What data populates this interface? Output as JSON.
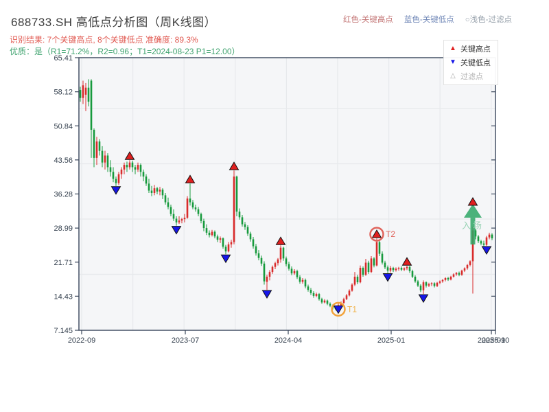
{
  "header": {
    "title": "688733.SH 高低点分析图（周K线图）",
    "result_line": "识别结果: 7个关键高点, 8个关键低点  准确度: 89.3%",
    "result_color": "#e15a52",
    "quality_line": "优质：是（R1=71.2%，R2=0.96；T1=2024-08-23 P1=12.00）",
    "quality_color": "#41a470",
    "legend_top": [
      {
        "label": "红色-关键高点",
        "color": "#c47878"
      },
      {
        "label": "蓝色-关键低点",
        "color": "#7289b8"
      },
      {
        "label": "○浅色-过滤点",
        "color": "#98a2ac"
      }
    ]
  },
  "legend_box": {
    "items": [
      {
        "label": "关键高点",
        "icon": "triangle-up-red",
        "icon_glyph": "▲",
        "icon_color": "#e01f1f",
        "text_color": "#333333"
      },
      {
        "label": "关键低点",
        "icon": "triangle-down-blue",
        "icon_glyph": "▼",
        "icon_color": "#1616e8",
        "text_color": "#333333"
      },
      {
        "label": "过滤点",
        "icon": "triangle-up-open",
        "icon_glyph": "△",
        "icon_color": "#aaaaaa",
        "text_color": "#b3b3b3"
      }
    ]
  },
  "chart_data": {
    "type": "candlestick",
    "title": "688733.SH weekly K-line with key high/low detection",
    "up_color": "#d92b2b",
    "down_color": "#179a3d",
    "high_marker_color": "#e01f1f",
    "low_marker_color": "#1616e8",
    "marker_edge_color": "#111111",
    "y_ticks": [
      {
        "label": "65.41",
        "value": 65.41
      },
      {
        "label": "58.12",
        "value": 58.12
      },
      {
        "label": "50.84",
        "value": 50.84
      },
      {
        "label": "43.56",
        "value": 43.56
      },
      {
        "label": "36.28",
        "value": 36.28
      },
      {
        "label": "28.99",
        "value": 28.99
      },
      {
        "label": "21.71",
        "value": 21.71
      },
      {
        "label": "14.43",
        "value": 14.43
      },
      {
        "label": "7.145",
        "value": 7.145
      }
    ],
    "x_ticks": [
      {
        "label": "2022-09",
        "pos": 0.5
      },
      {
        "label": "2023-07",
        "pos": 38.25
      },
      {
        "label": "2024-04",
        "pos": 75.75
      },
      {
        "label": "2025-01",
        "pos": 113.25
      },
      {
        "label": "2025-09",
        "pos": 149.75
      },
      {
        "label": "2025-10",
        "pos": 151.25
      }
    ],
    "candles": [
      [
        58.5,
        59.2,
        56.0,
        56.8
      ],
      [
        56.8,
        60.5,
        55.5,
        59.5
      ],
      [
        57.5,
        60.0,
        54.0,
        59.0
      ],
      [
        59.0,
        60.8,
        55.0,
        56.0
      ],
      [
        60.5,
        60.8,
        44.0,
        50.0
      ],
      [
        50.0,
        50.3,
        42.0,
        44.0
      ],
      [
        44.0,
        48.5,
        42.5,
        47.5
      ],
      [
        47.5,
        48.0,
        44.5,
        45.5
      ],
      [
        45.5,
        46.5,
        42.0,
        43.0
      ],
      [
        43.0,
        45.5,
        41.5,
        44.5
      ],
      [
        44.5,
        45.0,
        41.0,
        42.0
      ],
      [
        42.0,
        43.5,
        40.0,
        41.0
      ],
      [
        41.0,
        42.0,
        38.8,
        39.5
      ],
      [
        39.5,
        40.0,
        38.0,
        38.6
      ],
      [
        38.6,
        41.0,
        38.2,
        40.5
      ],
      [
        40.5,
        42.0,
        39.5,
        41.5
      ],
      [
        41.5,
        43.0,
        40.5,
        42.5
      ],
      [
        42.5,
        43.2,
        41.0,
        42.0
      ],
      [
        42.0,
        43.5,
        41.5,
        43.0
      ],
      [
        43.0,
        43.4,
        41.0,
        42.0
      ],
      [
        42.0,
        42.5,
        40.5,
        41.5
      ],
      [
        41.5,
        43.0,
        41.0,
        42.5
      ],
      [
        42.5,
        42.8,
        40.0,
        41.0
      ],
      [
        41.0,
        41.5,
        39.0,
        40.0
      ],
      [
        40.0,
        40.5,
        38.0,
        38.5
      ],
      [
        38.5,
        39.5,
        36.5,
        37.0
      ],
      [
        37.0,
        38.0,
        35.8,
        36.5
      ],
      [
        36.5,
        38.2,
        36.0,
        37.5
      ],
      [
        37.5,
        37.8,
        36.2,
        36.8
      ],
      [
        36.8,
        37.8,
        36.0,
        37.2
      ],
      [
        37.2,
        37.5,
        35.2,
        36.0
      ],
      [
        36.0,
        36.5,
        34.0,
        34.5
      ],
      [
        34.5,
        35.5,
        33.0,
        33.5
      ],
      [
        33.5,
        34.0,
        31.5,
        32.0
      ],
      [
        32.0,
        33.0,
        30.5,
        31.0
      ],
      [
        31.0,
        31.5,
        29.5,
        30.2
      ],
      [
        30.2,
        31.5,
        29.9,
        30.6
      ],
      [
        30.6,
        31.2,
        30.0,
        30.9
      ],
      [
        30.9,
        32.0,
        30.2,
        31.2
      ],
      [
        31.2,
        35.8,
        31.0,
        35.3
      ],
      [
        35.3,
        38.5,
        33.8,
        34.5
      ],
      [
        34.5,
        35.0,
        33.0,
        33.4
      ],
      [
        33.4,
        34.0,
        32.5,
        33.0
      ],
      [
        33.0,
        33.5,
        31.5,
        32.0
      ],
      [
        32.0,
        32.3,
        30.0,
        30.5
      ],
      [
        30.5,
        31.0,
        28.3,
        29.0
      ],
      [
        29.0,
        29.8,
        27.5,
        28.0
      ],
      [
        28.0,
        28.5,
        27.0,
        27.5
      ],
      [
        27.5,
        28.6,
        27.2,
        28.2
      ],
      [
        28.2,
        28.5,
        26.8,
        27.2
      ],
      [
        27.2,
        27.6,
        26.0,
        26.5
      ],
      [
        26.5,
        27.2,
        25.8,
        26.8
      ],
      [
        26.8,
        27.0,
        24.6,
        25.0
      ],
      [
        25.0,
        25.4,
        23.4,
        24.0
      ],
      [
        24.0,
        26.0,
        23.8,
        25.5
      ],
      [
        25.5,
        26.5,
        24.8,
        26.0
      ],
      [
        26.0,
        41.3,
        25.5,
        40.0
      ],
      [
        40.0,
        40.2,
        31.5,
        32.5
      ],
      [
        32.5,
        33.2,
        30.8,
        31.3
      ],
      [
        31.3,
        31.8,
        29.3,
        29.8
      ],
      [
        29.8,
        30.3,
        28.6,
        29.2
      ],
      [
        29.2,
        29.6,
        27.3,
        27.8
      ],
      [
        27.8,
        28.2,
        26.1,
        26.6
      ],
      [
        26.6,
        27.1,
        24.6,
        25.1
      ],
      [
        25.1,
        25.6,
        23.1,
        23.6
      ],
      [
        23.6,
        24.3,
        22.1,
        22.6
      ],
      [
        22.6,
        23.1,
        20.9,
        21.4
      ],
      [
        21.4,
        21.9,
        16.9,
        17.6
      ],
      [
        17.5,
        19.0,
        15.8,
        18.6
      ],
      [
        18.6,
        20.0,
        17.8,
        19.6
      ],
      [
        19.6,
        21.0,
        19.2,
        20.7
      ],
      [
        20.7,
        21.8,
        20.2,
        21.5
      ],
      [
        21.5,
        22.6,
        21.0,
        22.3
      ],
      [
        22.3,
        25.3,
        21.6,
        24.8
      ],
      [
        24.8,
        25.0,
        22.0,
        22.5
      ],
      [
        22.5,
        22.9,
        20.8,
        21.3
      ],
      [
        21.3,
        21.8,
        19.9,
        20.3
      ],
      [
        20.3,
        20.8,
        18.9,
        19.3
      ],
      [
        19.3,
        20.2,
        19.0,
        19.8
      ],
      [
        19.8,
        20.1,
        18.1,
        18.5
      ],
      [
        18.5,
        18.9,
        17.1,
        17.5
      ],
      [
        17.5,
        18.3,
        17.1,
        17.9
      ],
      [
        17.9,
        18.2,
        16.1,
        16.5
      ],
      [
        16.5,
        16.9,
        15.4,
        15.8
      ],
      [
        15.8,
        16.2,
        14.7,
        15.1
      ],
      [
        15.1,
        15.5,
        14.1,
        14.5
      ],
      [
        14.5,
        15.2,
        14.2,
        14.9
      ],
      [
        14.9,
        15.1,
        13.5,
        13.8
      ],
      [
        13.8,
        14.1,
        12.8,
        13.1
      ],
      [
        13.1,
        13.8,
        12.9,
        13.5
      ],
      [
        13.5,
        13.7,
        12.5,
        12.8
      ],
      [
        12.8,
        13.1,
        12.1,
        12.4
      ],
      [
        12.4,
        12.7,
        11.6,
        12.0
      ],
      [
        12.0,
        12.3,
        11.4,
        11.7
      ],
      [
        11.7,
        12.9,
        11.5,
        12.5
      ],
      [
        12.5,
        13.3,
        12.2,
        13.0
      ],
      [
        13.0,
        14.1,
        12.8,
        13.8
      ],
      [
        13.8,
        14.9,
        13.6,
        14.6
      ],
      [
        14.6,
        15.9,
        14.4,
        15.6
      ],
      [
        15.6,
        17.2,
        15.4,
        16.9
      ],
      [
        16.9,
        19.6,
        16.6,
        18.6
      ],
      [
        18.6,
        19.0,
        17.0,
        17.4
      ],
      [
        17.4,
        21.0,
        17.2,
        20.5
      ],
      [
        20.5,
        20.8,
        18.6,
        19.0
      ],
      [
        19.0,
        22.4,
        18.8,
        21.6
      ],
      [
        21.6,
        22.0,
        19.2,
        19.6
      ],
      [
        19.6,
        23.0,
        19.4,
        22.5
      ],
      [
        22.5,
        22.8,
        20.6,
        21.0
      ],
      [
        21.0,
        26.8,
        20.8,
        26.0
      ],
      [
        26.0,
        26.3,
        23.0,
        23.5
      ],
      [
        23.5,
        24.0,
        21.2,
        21.6
      ],
      [
        21.6,
        22.0,
        20.2,
        20.6
      ],
      [
        20.6,
        21.0,
        19.4,
        19.9
      ],
      [
        19.9,
        20.9,
        19.5,
        20.5
      ],
      [
        20.5,
        20.7,
        19.6,
        20.0
      ],
      [
        20.0,
        20.6,
        19.7,
        20.3
      ],
      [
        20.3,
        20.7,
        19.9,
        20.5
      ],
      [
        20.5,
        20.8,
        19.8,
        20.1
      ],
      [
        20.1,
        20.6,
        19.8,
        20.4
      ],
      [
        20.4,
        20.9,
        20.0,
        20.7
      ],
      [
        20.7,
        20.9,
        19.4,
        19.8
      ],
      [
        19.8,
        20.1,
        18.3,
        18.6
      ],
      [
        18.6,
        18.9,
        17.3,
        17.6
      ],
      [
        17.6,
        17.9,
        16.4,
        16.7
      ],
      [
        16.7,
        17.0,
        15.3,
        15.7
      ],
      [
        15.7,
        17.8,
        14.9,
        17.4
      ],
      [
        17.4,
        17.6,
        16.3,
        16.7
      ],
      [
        16.7,
        17.3,
        16.4,
        17.0
      ],
      [
        17.0,
        17.4,
        16.6,
        17.2
      ],
      [
        17.2,
        17.4,
        16.3,
        16.6
      ],
      [
        16.6,
        17.5,
        16.4,
        17.3
      ],
      [
        17.3,
        17.8,
        17.0,
        17.6
      ],
      [
        17.6,
        18.1,
        17.3,
        17.9
      ],
      [
        17.9,
        18.5,
        17.6,
        18.3
      ],
      [
        18.3,
        18.6,
        17.7,
        18.0
      ],
      [
        18.0,
        18.8,
        17.8,
        18.6
      ],
      [
        18.6,
        19.3,
        18.4,
        19.1
      ],
      [
        19.1,
        19.6,
        18.8,
        19.4
      ],
      [
        19.4,
        19.7,
        18.7,
        19.0
      ],
      [
        19.0,
        20.1,
        18.8,
        19.9
      ],
      [
        19.9,
        20.6,
        19.6,
        20.4
      ],
      [
        20.4,
        21.3,
        20.1,
        21.1
      ],
      [
        21.1,
        22.1,
        20.8,
        21.9
      ],
      [
        21.9,
        29.3,
        15.0,
        28.5
      ],
      [
        28.5,
        28.8,
        26.6,
        27.2
      ],
      [
        27.2,
        27.5,
        25.8,
        26.2
      ],
      [
        26.2,
        26.5,
        25.3,
        25.7
      ],
      [
        25.7,
        26.3,
        25.0,
        25.4
      ],
      [
        25.4,
        27.3,
        25.2,
        27.0
      ],
      [
        27.0,
        28.0,
        26.6,
        27.6
      ],
      [
        27.6,
        27.9,
        26.4,
        26.8
      ]
    ],
    "key_highs": [
      {
        "index": 18
      },
      {
        "index": 40
      },
      {
        "index": 56
      },
      {
        "index": 73
      },
      {
        "index": 108,
        "tag": "T2",
        "ring_color": "#e0645c",
        "tag_color": "#e0645c"
      },
      {
        "index": 119
      },
      {
        "index": 143,
        "dy": -30
      }
    ],
    "key_lows": [
      {
        "index": 13
      },
      {
        "index": 35
      },
      {
        "index": 53
      },
      {
        "index": 68
      },
      {
        "index": 94,
        "tag": "T1",
        "ring_color": "#f2a33c",
        "tag_color": "#f0b24a",
        "dy": -7
      },
      {
        "index": 112
      },
      {
        "index": 125
      },
      {
        "index": 148
      }
    ],
    "entry_signal": {
      "index": 143,
      "label": "入场",
      "arrow_color": "#2ea766",
      "label_color": "#8fcfae"
    }
  }
}
